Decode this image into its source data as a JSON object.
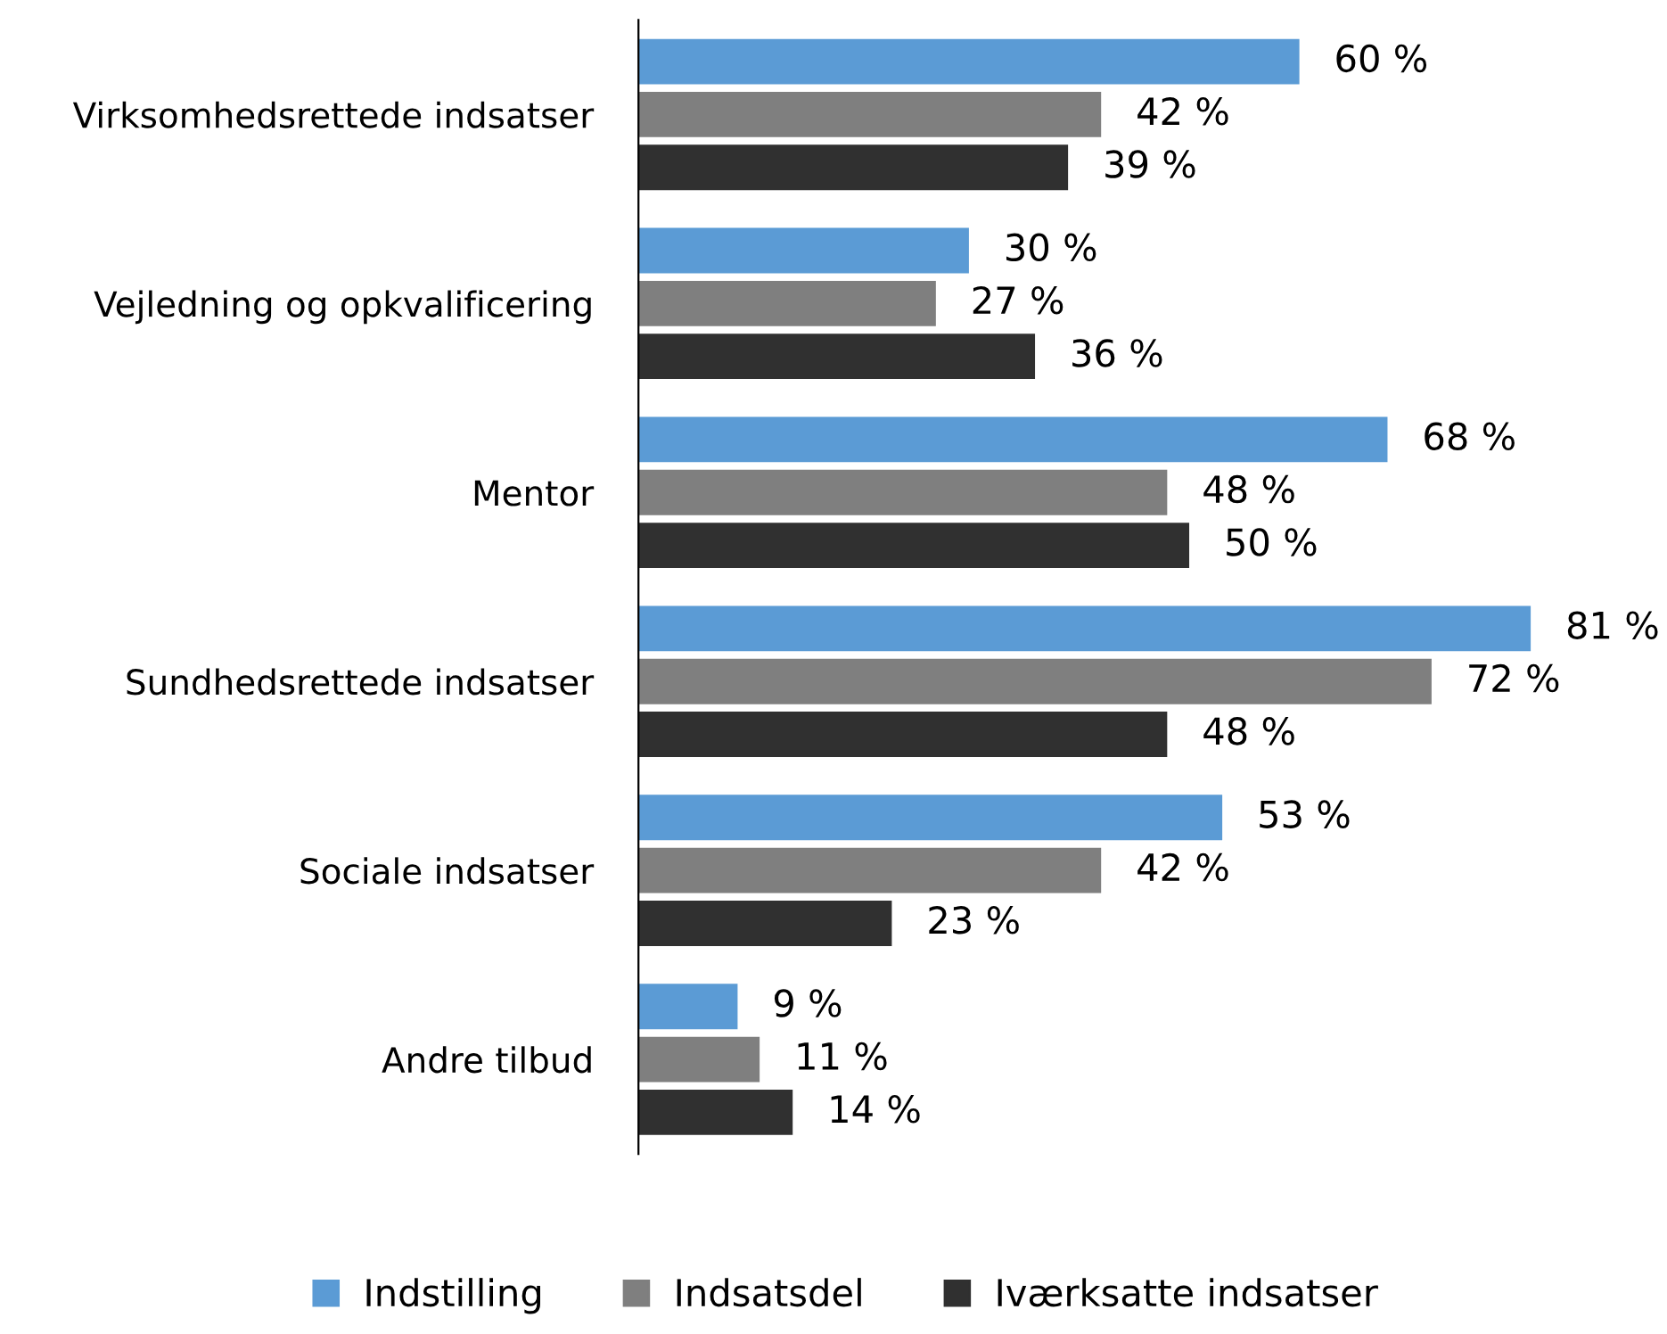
{
  "chart_data": {
    "type": "bar",
    "orientation": "horizontal",
    "categories": [
      "Virksomhedsrettede indsatser",
      "Vejledning og opkvalificering",
      "Mentor",
      "Sundhedsrettede indsatser",
      "Sociale indsatser",
      "Andre tilbud"
    ],
    "series": [
      {
        "name": "Indstilling",
        "color": "#5b9bd5",
        "values": [
          60,
          30,
          68,
          81,
          53,
          9
        ],
        "value_labels": [
          "60 %",
          "30 %",
          "68 %",
          "81 %",
          "53 %",
          "9 %"
        ]
      },
      {
        "name": "Indsatsdel",
        "color": "#7f7f7f",
        "values": [
          42,
          27,
          48,
          72,
          42,
          11
        ],
        "value_labels": [
          "42 %",
          "27 %",
          "48 %",
          "72 %",
          "42 %",
          "11 %"
        ]
      },
      {
        "name": "Iværksatte indsatser",
        "color": "#303030",
        "values": [
          39,
          36,
          50,
          48,
          23,
          14
        ],
        "value_labels": [
          "39 %",
          "36 %",
          "50 %",
          "48 %",
          "23 %",
          "14 %"
        ]
      }
    ],
    "tick_labels": "y",
    "grid": false,
    "legend": "bottom",
    "marker": "square"
  }
}
